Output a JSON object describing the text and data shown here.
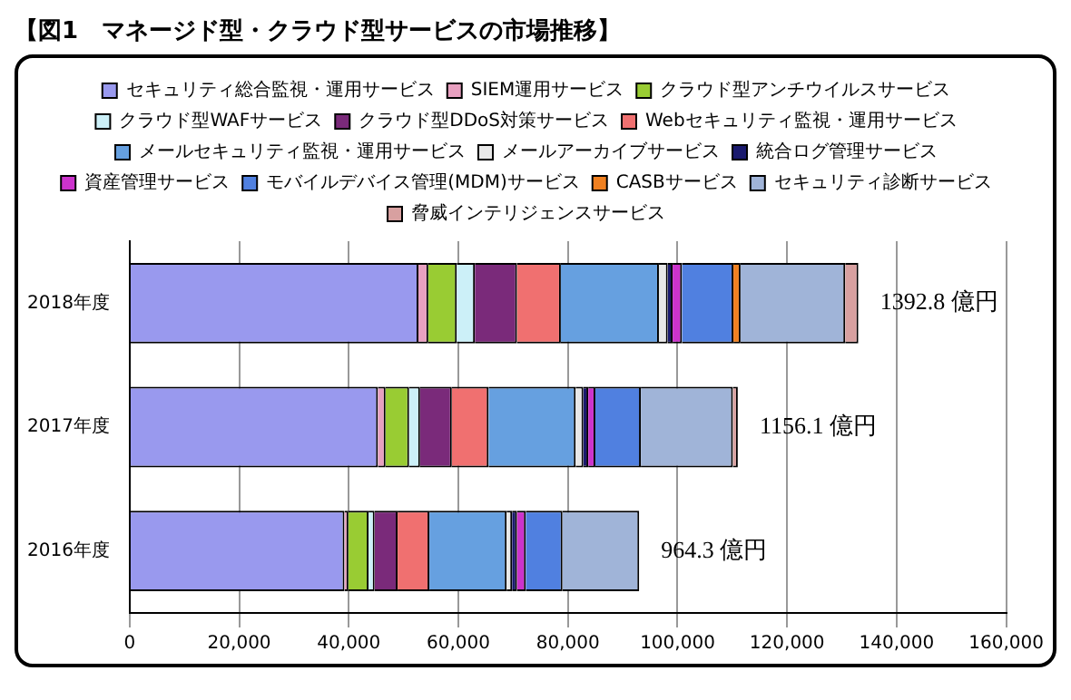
{
  "chart_data": {
    "type": "bar",
    "orientation": "horizontal",
    "stacked": true,
    "title": "【図1　マネージド型・クラウド型サービスの市場推移】",
    "categories": [
      "2018年度",
      "2017年度",
      "2016年度"
    ],
    "xlim": [
      0,
      160000
    ],
    "xticks": [
      {
        "value": 0,
        "label": "0"
      },
      {
        "value": 20000,
        "label": "20,000"
      },
      {
        "value": 40000,
        "label": "40,000"
      },
      {
        "value": 60000,
        "label": "60,000"
      },
      {
        "value": 80000,
        "label": "80,000"
      },
      {
        "value": 100000,
        "label": "100,000"
      },
      {
        "value": 120000,
        "label": "120,000"
      },
      {
        "value": 140000,
        "label": "140,000"
      },
      {
        "value": 160000,
        "label": "160,000"
      }
    ],
    "grid": "x",
    "legend": "top",
    "annotations": [
      "1392.8 億円",
      "1156.1 億円",
      "964.3 億円"
    ],
    "series": [
      {
        "name": "セキュリティ総合監視・運用サービス",
        "color": "#9999ee",
        "values": [
          52700,
          45300,
          39200
        ]
      },
      {
        "name": "SIEM運用サービス",
        "color": "#e8a0c0",
        "values": [
          1800,
          1400,
          700
        ]
      },
      {
        "name": "クラウド型アンチウイルスサービス",
        "color": "#99cc33",
        "values": [
          5200,
          4300,
          3700
        ]
      },
      {
        "name": "クラウド型WAFサービス",
        "color": "#ccf0f8",
        "values": [
          3300,
          2000,
          1100
        ]
      },
      {
        "name": "クラウド型DDoS対策サービス",
        "color": "#7a2a7a",
        "values": [
          7700,
          5800,
          4200
        ]
      },
      {
        "name": "Webセキュリティ監視・運用サービス",
        "color": "#f07070",
        "values": [
          8000,
          6700,
          5800
        ]
      },
      {
        "name": "メールセキュリティ監視・運用サービス",
        "color": "#66a0e0",
        "values": [
          17900,
          15900,
          14100
        ]
      },
      {
        "name": "メールアーカイブサービス",
        "color": "#e8e8e8",
        "values": [
          1600,
          1400,
          1000
        ]
      },
      {
        "name": "統合ログ管理サービス",
        "color": "#1a1a6e",
        "values": [
          900,
          900,
          900
        ]
      },
      {
        "name": "資産管理サービス",
        "color": "#cc33cc",
        "values": [
          1700,
          1300,
          1600
        ]
      },
      {
        "name": "モバイルデバイス管理(MDM)サービス",
        "color": "#5080e0",
        "values": [
          9400,
          8300,
          6700
        ]
      },
      {
        "name": "CASBサービス",
        "color": "#f08020",
        "values": [
          1300,
          null,
          null
        ]
      },
      {
        "name": "セキュリティ診断サービス",
        "color": "#a0b4d8",
        "values": [
          19100,
          16800,
          14000
        ]
      },
      {
        "name": "脅威インテリジェンスサービス",
        "color": "#d8a0a0",
        "values": [
          2400,
          900,
          null
        ]
      }
    ]
  }
}
